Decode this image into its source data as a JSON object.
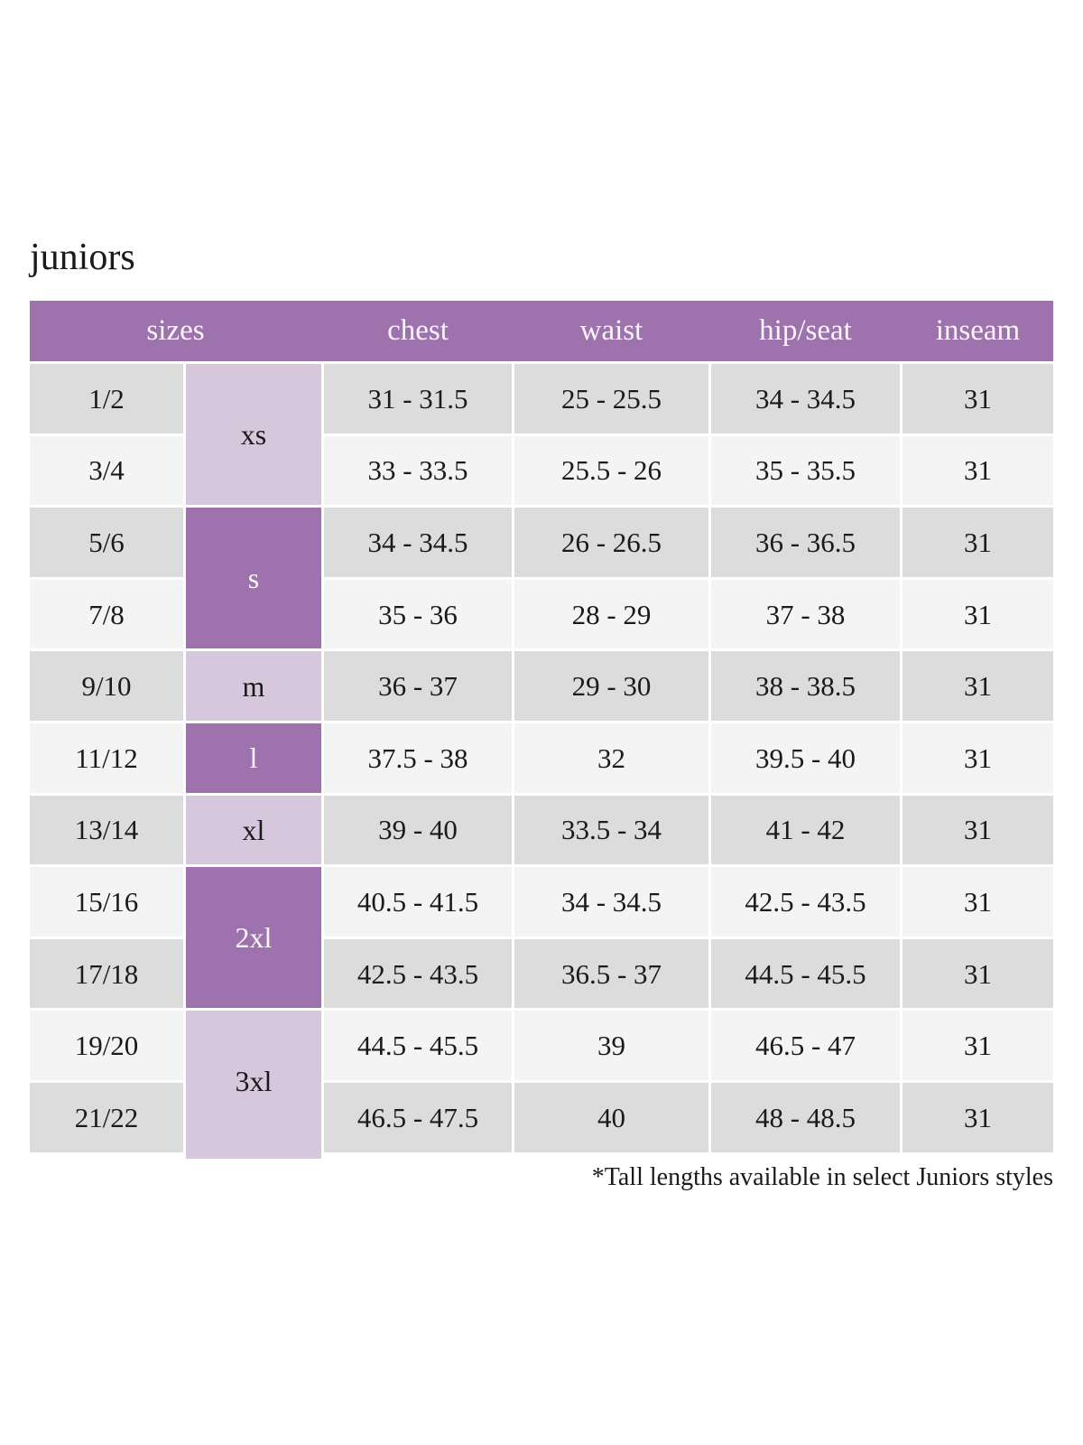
{
  "title": "juniors",
  "footnote": "*Tall lengths available in select Juniors styles",
  "colors": {
    "header_purple": "#9e72ad",
    "dark_purple": "#9e72ad",
    "light_purple": "#d7c7dd",
    "row_dark_gray": "#dcdcdc",
    "row_light_gray": "#f4f4f4",
    "text": "#1a1a1a",
    "header_text": "#faf6fb"
  },
  "table": {
    "headers": [
      "sizes",
      "chest",
      "waist",
      "hip/seat",
      "inseam"
    ],
    "size_groups": [
      {
        "label": "xs",
        "span": 2,
        "shade": "light"
      },
      {
        "label": "s",
        "span": 2,
        "shade": "dark"
      },
      {
        "label": "m",
        "span": 1,
        "shade": "light"
      },
      {
        "label": "l",
        "span": 1,
        "shade": "dark"
      },
      {
        "label": "xl",
        "span": 1,
        "shade": "light"
      },
      {
        "label": "2xl",
        "span": 2,
        "shade": "dark"
      },
      {
        "label": "3xl",
        "span": 2,
        "shade": "light"
      }
    ],
    "rows": [
      {
        "size": "1/2",
        "chest": "31 - 31.5",
        "waist": "25 - 25.5",
        "hip_seat": "34 - 34.5",
        "inseam": "31"
      },
      {
        "size": "3/4",
        "chest": "33 - 33.5",
        "waist": "25.5 - 26",
        "hip_seat": "35 - 35.5",
        "inseam": "31"
      },
      {
        "size": "5/6",
        "chest": "34 - 34.5",
        "waist": "26 - 26.5",
        "hip_seat": "36 - 36.5",
        "inseam": "31"
      },
      {
        "size": "7/8",
        "chest": "35 - 36",
        "waist": "28 - 29",
        "hip_seat": "37 - 38",
        "inseam": "31"
      },
      {
        "size": "9/10",
        "chest": "36 - 37",
        "waist": "29 - 30",
        "hip_seat": "38 - 38.5",
        "inseam": "31"
      },
      {
        "size": "11/12",
        "chest": "37.5 - 38",
        "waist": "32",
        "hip_seat": "39.5 - 40",
        "inseam": "31"
      },
      {
        "size": "13/14",
        "chest": "39 - 40",
        "waist": "33.5 - 34",
        "hip_seat": "41 - 42",
        "inseam": "31"
      },
      {
        "size": "15/16",
        "chest": "40.5 - 41.5",
        "waist": "34 - 34.5",
        "hip_seat": "42.5 - 43.5",
        "inseam": "31"
      },
      {
        "size": "17/18",
        "chest": "42.5 - 43.5",
        "waist": "36.5 - 37",
        "hip_seat": "44.5 - 45.5",
        "inseam": "31"
      },
      {
        "size": "19/20",
        "chest": "44.5 - 45.5",
        "waist": "39",
        "hip_seat": "46.5 - 47",
        "inseam": "31"
      },
      {
        "size": "21/22",
        "chest": "46.5 - 47.5",
        "waist": "40",
        "hip_seat": "48 - 48.5",
        "inseam": "31"
      }
    ]
  }
}
